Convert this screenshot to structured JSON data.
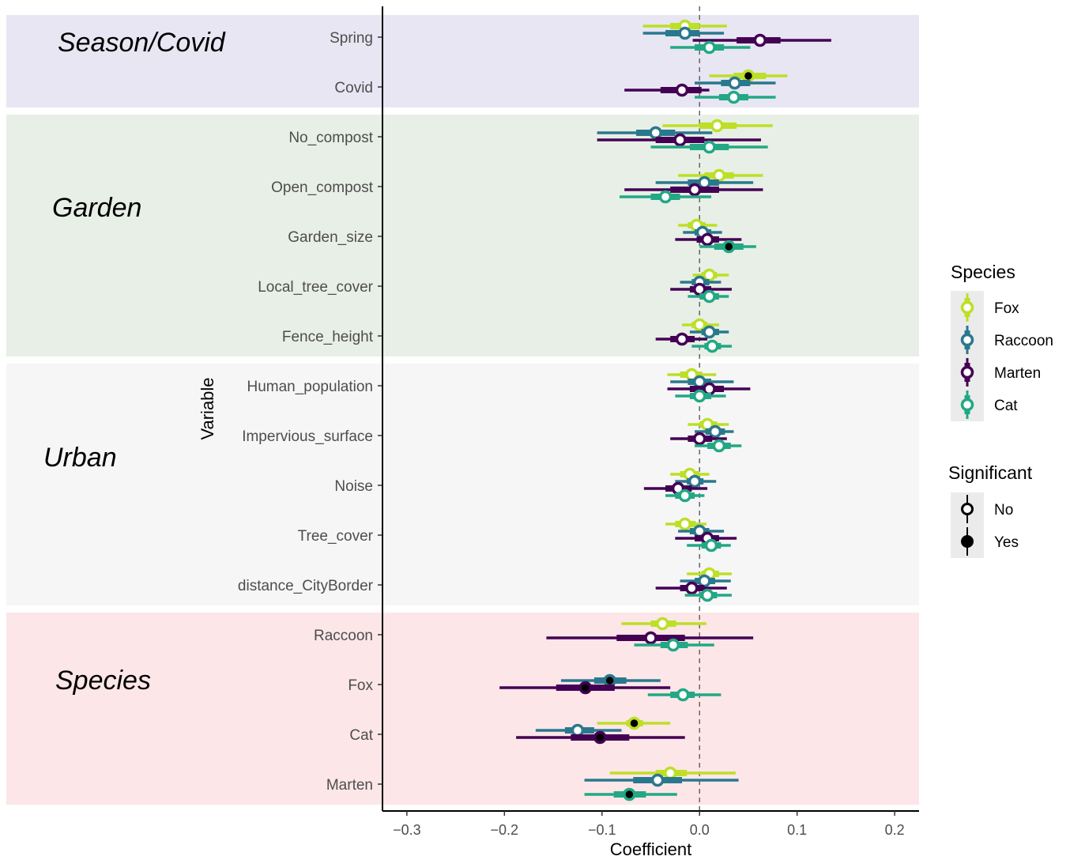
{
  "chart_data": {
    "type": "forest",
    "xlabel": "Coefficient",
    "ylabel": "Variable",
    "xlim": [
      -0.325,
      0.225
    ],
    "xticks": [
      -0.3,
      -0.2,
      -0.1,
      0.0,
      0.1,
      0.2
    ],
    "xtick_labels": [
      "−0.3",
      "−0.2",
      "−0.1",
      "0.0",
      "0.1",
      "0.2"
    ],
    "reference_line": 0.0,
    "categories": [
      "Spring",
      "Covid",
      "No_compost",
      "Open_compost",
      "Garden_size",
      "Local_tree_cover",
      "Fence_height",
      "Human_population",
      "Impervious_surface",
      "Noise",
      "Tree_cover",
      "distance_CityBorder",
      "Raccoon",
      "Fox",
      "Cat",
      "Marten"
    ],
    "groups": [
      {
        "name": "Season/Covid",
        "color": "#e8e6f3",
        "from": 0,
        "to": 1
      },
      {
        "name": "Garden",
        "color": "#e8efe6",
        "from": 2,
        "to": 6
      },
      {
        "name": "Urban",
        "color": "#f6f6f6",
        "from": 7,
        "to": 11
      },
      {
        "name": "Species",
        "color": "#fce6e8",
        "from": 12,
        "to": 15
      }
    ],
    "series": [
      {
        "name": "Fox",
        "color": "#bddf26",
        "values": [
          -0.015,
          0.05,
          0.018,
          0.02,
          -0.003,
          0.01,
          0.0,
          -0.008,
          0.008,
          -0.01,
          -0.015,
          0.01,
          -0.038,
          null,
          -0.067,
          -0.03
        ],
        "inner_lo": [
          -0.03,
          0.035,
          0.0,
          0.005,
          -0.012,
          0.002,
          -0.008,
          -0.02,
          0.0,
          -0.02,
          -0.025,
          0.002,
          -0.05,
          null,
          -0.075,
          -0.045
        ],
        "inner_hi": [
          0.0,
          0.068,
          0.038,
          0.035,
          0.006,
          0.018,
          0.008,
          0.003,
          0.018,
          0.0,
          -0.004,
          0.02,
          -0.024,
          null,
          -0.058,
          -0.013
        ],
        "outer_lo": [
          -0.058,
          0.01,
          -0.038,
          -0.022,
          -0.022,
          -0.007,
          -0.018,
          -0.033,
          -0.012,
          -0.03,
          -0.035,
          -0.013,
          -0.08,
          null,
          -0.105,
          -0.092
        ],
        "outer_hi": [
          0.028,
          0.09,
          0.075,
          0.065,
          0.018,
          0.03,
          0.02,
          0.017,
          0.03,
          0.01,
          0.007,
          0.033,
          0.007,
          null,
          -0.03,
          0.037
        ],
        "significant": [
          false,
          true,
          false,
          false,
          false,
          false,
          false,
          false,
          false,
          false,
          false,
          false,
          false,
          null,
          true,
          false
        ]
      },
      {
        "name": "Raccoon",
        "color": "#2a788e",
        "values": [
          -0.015,
          0.036,
          -0.045,
          0.005,
          0.003,
          0.0,
          0.01,
          0.0,
          0.016,
          -0.005,
          0.0,
          0.005,
          null,
          -0.092,
          -0.125,
          -0.043
        ],
        "inner_lo": [
          -0.035,
          0.022,
          -0.065,
          -0.012,
          -0.005,
          -0.008,
          0.002,
          -0.012,
          0.006,
          -0.013,
          -0.01,
          -0.005,
          null,
          -0.108,
          -0.138,
          -0.068
        ],
        "inner_hi": [
          0.0,
          0.052,
          -0.025,
          0.02,
          0.012,
          0.01,
          0.02,
          0.012,
          0.026,
          0.004,
          0.01,
          0.016,
          null,
          -0.075,
          -0.108,
          -0.018
        ],
        "outer_lo": [
          -0.058,
          -0.005,
          -0.105,
          -0.045,
          -0.017,
          -0.02,
          -0.01,
          -0.03,
          -0.005,
          -0.025,
          -0.022,
          -0.02,
          null,
          -0.142,
          -0.168,
          -0.118
        ],
        "outer_hi": [
          0.025,
          0.078,
          0.013,
          0.055,
          0.023,
          0.022,
          0.03,
          0.035,
          0.035,
          0.017,
          0.025,
          0.032,
          null,
          -0.04,
          -0.08,
          0.04
        ],
        "significant": [
          false,
          false,
          false,
          false,
          false,
          false,
          false,
          false,
          false,
          false,
          false,
          false,
          null,
          true,
          false,
          false
        ]
      },
      {
        "name": "Marten",
        "color": "#440154",
        "values": [
          0.062,
          -0.018,
          -0.02,
          -0.005,
          0.008,
          0.0,
          -0.018,
          0.01,
          0.0,
          -0.022,
          0.008,
          -0.008,
          -0.05,
          -0.117,
          -0.102,
          null
        ],
        "inner_lo": [
          0.038,
          -0.04,
          -0.045,
          -0.03,
          -0.003,
          -0.01,
          -0.03,
          -0.01,
          -0.012,
          -0.035,
          -0.005,
          -0.02,
          -0.085,
          -0.147,
          -0.132,
          null
        ],
        "inner_hi": [
          0.083,
          0.002,
          0.005,
          0.02,
          0.02,
          0.012,
          -0.005,
          0.025,
          0.013,
          -0.008,
          0.02,
          0.005,
          -0.015,
          -0.087,
          -0.072,
          null
        ],
        "outer_lo": [
          -0.007,
          -0.077,
          -0.105,
          -0.077,
          -0.025,
          -0.03,
          -0.045,
          -0.033,
          -0.03,
          -0.057,
          -0.025,
          -0.045,
          -0.157,
          -0.205,
          -0.188,
          null
        ],
        "outer_hi": [
          0.135,
          0.01,
          0.063,
          0.065,
          0.043,
          0.033,
          0.008,
          0.052,
          0.028,
          0.008,
          0.038,
          0.028,
          0.055,
          -0.03,
          -0.015,
          null
        ],
        "significant": [
          false,
          false,
          false,
          false,
          false,
          false,
          false,
          false,
          false,
          false,
          false,
          false,
          false,
          true,
          true,
          null
        ]
      },
      {
        "name": "Cat",
        "color": "#22a884",
        "values": [
          0.01,
          0.035,
          0.01,
          -0.035,
          0.03,
          0.01,
          0.013,
          0.0,
          0.02,
          -0.015,
          0.012,
          0.008,
          -0.027,
          -0.017,
          null,
          -0.072
        ],
        "inner_lo": [
          -0.005,
          0.02,
          -0.01,
          -0.05,
          0.015,
          0.0,
          0.005,
          -0.01,
          0.008,
          -0.025,
          0.002,
          0.0,
          -0.04,
          -0.03,
          null,
          -0.088
        ],
        "inner_hi": [
          0.025,
          0.05,
          0.03,
          -0.02,
          0.045,
          0.02,
          0.022,
          0.012,
          0.032,
          -0.005,
          0.022,
          0.018,
          -0.012,
          -0.005,
          null,
          -0.055
        ],
        "outer_lo": [
          -0.03,
          -0.005,
          -0.05,
          -0.082,
          0.0,
          -0.012,
          -0.008,
          -0.025,
          -0.005,
          -0.035,
          -0.013,
          -0.015,
          -0.067,
          -0.053,
          null,
          -0.118
        ],
        "outer_hi": [
          0.052,
          0.078,
          0.07,
          0.012,
          0.058,
          0.03,
          0.033,
          0.027,
          0.043,
          0.005,
          0.032,
          0.033,
          0.015,
          0.022,
          null,
          -0.023
        ],
        "significant": [
          false,
          false,
          false,
          false,
          true,
          false,
          false,
          false,
          false,
          false,
          false,
          false,
          false,
          false,
          null,
          true
        ]
      }
    ],
    "legend": {
      "placement": "right",
      "species_title": "Species",
      "species_items": [
        "Fox",
        "Raccoon",
        "Marten",
        "Cat"
      ],
      "significant_title": "Significant",
      "significant_items": [
        "No",
        "Yes"
      ]
    }
  }
}
